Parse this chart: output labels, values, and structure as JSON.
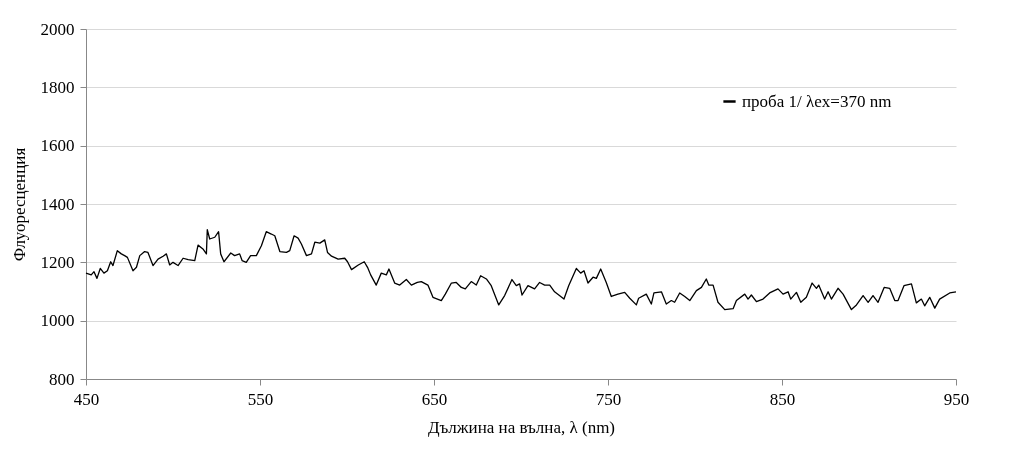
{
  "chart_data": {
    "type": "line",
    "xlabel": "Дължина на вълна, λ (nm)",
    "ylabel": "Флуоресценция",
    "xlim": [
      450,
      950
    ],
    "xticks": [
      450,
      550,
      650,
      750,
      850,
      950
    ],
    "ylim": [
      800,
      2000
    ],
    "yticks": [
      800,
      1000,
      1200,
      1400,
      1600,
      1800,
      2000
    ],
    "grid": "y",
    "legend": "top right",
    "marker": "none",
    "line_style": "solid",
    "series": [
      {
        "name": "проба 1/ λex=370 nm",
        "color": "#000000",
        "x": [
          450,
          453,
          454.6,
          456.3,
          458.2,
          460.3,
          462.3,
          464.2,
          465.5,
          468,
          470.3,
          472.2,
          473.8,
          477,
          479,
          480.9,
          483.7,
          485.6,
          488.5,
          491.4,
          494.3,
          496.2,
          498.1,
          500,
          502.9,
          505.8,
          508.7,
          512.5,
          514.4,
          517.2,
          519.2,
          519.7,
          521.1,
          524,
          526.2,
          527.4,
          529.3,
          533.2,
          535.4,
          538.3,
          539.7,
          542.1,
          544.6,
          547.9,
          550.8,
          553.6,
          556.5,
          558.5,
          561.4,
          565.2,
          567.1,
          569.6,
          571.9,
          573.8,
          576.7,
          579.6,
          581.5,
          584.4,
          587.2,
          588.8,
          591.1,
          594.9,
          598.7,
          600.3,
          602.6,
          606.5,
          609.9,
          611.8,
          613.6,
          616.8,
          619.7,
          622.6,
          624.1,
          627.4,
          630.3,
          634.1,
          637,
          640.4,
          642.7,
          646.5,
          649.4,
          654.2,
          656.5,
          660,
          662.8,
          665.7,
          668,
          671.4,
          674.3,
          676.8,
          680.1,
          682.9,
          687.2,
          690.6,
          694.8,
          697.3,
          699.2,
          700.6,
          704,
          707.8,
          710.7,
          713.6,
          716.5,
          719.3,
          724.7,
          727.4,
          731.8,
          734.3,
          736.2,
          738.5,
          741.4,
          743.3,
          745.8,
          749,
          751.9,
          755.7,
          759.6,
          762.5,
          766.3,
          767.6,
          772,
          774.9,
          776.4,
          780.7,
          783.5,
          786.4,
          788.3,
          791.2,
          794.1,
          797,
          800.8,
          803.7,
          806.5,
          807.9,
          810.4,
          813.2,
          817.1,
          821.9,
          823.8,
          828.6,
          830.5,
          832.4,
          835.3,
          839.1,
          842.9,
          847.7,
          850.6,
          853.5,
          855,
          858.3,
          860.8,
          864,
          867.3,
          869.8,
          871.1,
          874.5,
          876.5,
          878.4,
          882.2,
          885.1,
          889.9,
          892.8,
          896.6,
          899.5,
          902.3,
          905.2,
          908.7,
          911.9,
          914.8,
          916.7,
          920.1,
          924.4,
          927.2,
          930.1,
          932,
          934.9,
          937.8,
          940.6,
          946.4,
          950
        ],
        "values": [
          1163,
          1157,
          1168,
          1145,
          1179,
          1163,
          1171,
          1202,
          1189,
          1240,
          1229,
          1223,
          1217,
          1171,
          1183,
          1223,
          1237,
          1234,
          1189,
          1211,
          1221,
          1229,
          1191,
          1200,
          1189,
          1214,
          1209,
          1206,
          1259,
          1246,
          1229,
          1312,
          1280,
          1286,
          1305,
          1229,
          1202,
          1232,
          1223,
          1229,
          1206,
          1200,
          1223,
          1223,
          1257,
          1305,
          1297,
          1291,
          1237,
          1234,
          1240,
          1291,
          1283,
          1263,
          1223,
          1229,
          1269,
          1266,
          1277,
          1234,
          1221,
          1211,
          1214,
          1202,
          1175,
          1191,
          1202,
          1183,
          1157,
          1122,
          1163,
          1157,
          1177,
          1129,
          1122,
          1141,
          1122,
          1131,
          1134,
          1122,
          1080,
          1069,
          1091,
          1129,
          1131,
          1114,
          1109,
          1134,
          1122,
          1154,
          1143,
          1120,
          1054,
          1086,
          1141,
          1120,
          1126,
          1088,
          1120,
          1109,
          1131,
          1122,
          1122,
          1099,
          1074,
          1120,
          1179,
          1163,
          1171,
          1129,
          1149,
          1145,
          1177,
          1131,
          1083,
          1091,
          1097,
          1077,
          1054,
          1077,
          1091,
          1057,
          1095,
          1099,
          1057,
          1069,
          1063,
          1095,
          1083,
          1069,
          1103,
          1114,
          1143,
          1122,
          1122,
          1063,
          1038,
          1041,
          1069,
          1091,
          1074,
          1088,
          1065,
          1074,
          1095,
          1109,
          1091,
          1099,
          1074,
          1097,
          1063,
          1080,
          1129,
          1111,
          1122,
          1074,
          1099,
          1074,
          1111,
          1091,
          1038,
          1054,
          1086,
          1063,
          1086,
          1063,
          1114,
          1111,
          1069,
          1069,
          1120,
          1126,
          1061,
          1074,
          1051,
          1080,
          1043,
          1074,
          1095,
          1099
        ]
      }
    ]
  }
}
